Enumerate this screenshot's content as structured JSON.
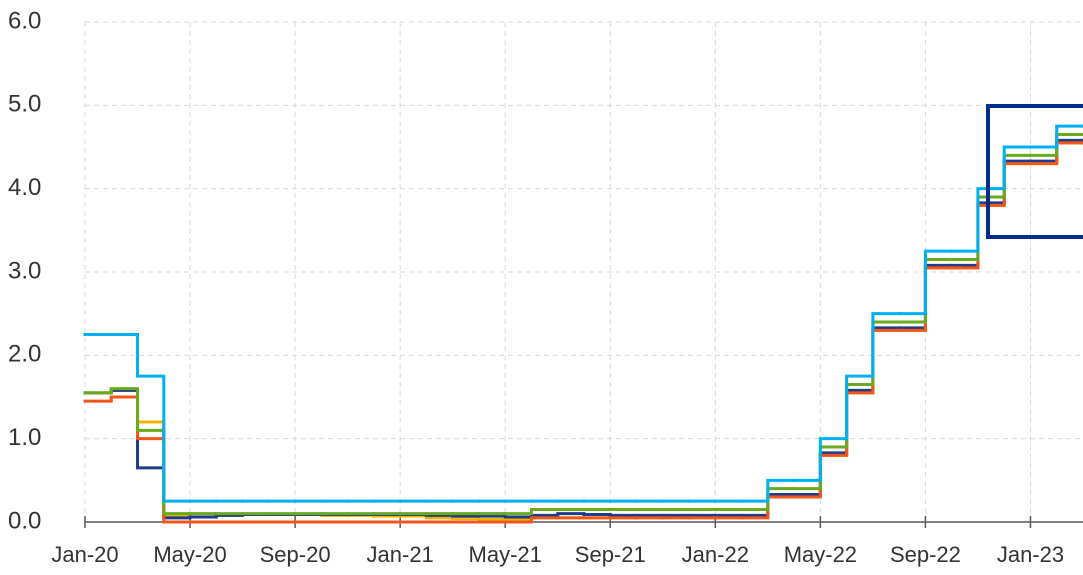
{
  "chart_data": {
    "type": "line",
    "x": [
      "2020-01",
      "2020-02",
      "2020-03",
      "2020-04",
      "2020-05",
      "2020-06",
      "2020-07",
      "2020-08",
      "2020-09",
      "2020-10",
      "2020-11",
      "2020-12",
      "2021-01",
      "2021-02",
      "2021-03",
      "2021-04",
      "2021-05",
      "2021-06",
      "2021-07",
      "2021-08",
      "2021-09",
      "2021-10",
      "2021-11",
      "2021-12",
      "2022-01",
      "2022-02",
      "2022-03",
      "2022-04",
      "2022-05",
      "2022-06",
      "2022-07",
      "2022-08",
      "2022-09",
      "2022-10",
      "2022-11",
      "2022-12",
      "2023-01",
      "2023-02",
      "2023-03"
    ],
    "series": [
      {
        "color": "#f0b400",
        "values": [
          1.55,
          1.58,
          1.2,
          0.08,
          0.06,
          0.08,
          0.09,
          0.09,
          0.09,
          0.08,
          0.08,
          0.07,
          0.07,
          0.05,
          0.04,
          0.03,
          0.03,
          0.05,
          0.05,
          0.05,
          0.05,
          0.05,
          0.05,
          0.05,
          0.05,
          0.05,
          0.3,
          0.3,
          0.8,
          1.55,
          2.3,
          2.3,
          3.05,
          3.05,
          3.8,
          4.3,
          4.3,
          4.55,
          4.55
        ]
      },
      {
        "color": "#1f3c88",
        "values": [
          1.55,
          1.58,
          0.65,
          0.05,
          0.06,
          0.08,
          0.09,
          0.09,
          0.09,
          0.09,
          0.09,
          0.09,
          0.09,
          0.08,
          0.07,
          0.07,
          0.06,
          0.08,
          0.1,
          0.09,
          0.08,
          0.08,
          0.08,
          0.08,
          0.08,
          0.08,
          0.33,
          0.33,
          0.83,
          1.58,
          2.33,
          2.33,
          3.08,
          3.08,
          3.83,
          4.33,
          4.33,
          4.58,
          4.58
        ]
      },
      {
        "color": "#f2561d",
        "values": [
          1.45,
          1.5,
          1.0,
          0.0,
          0.0,
          0.0,
          0.0,
          0.0,
          0.0,
          0.0,
          0.0,
          0.0,
          0.0,
          0.0,
          0.0,
          0.0,
          0.0,
          0.05,
          0.05,
          0.05,
          0.05,
          0.05,
          0.05,
          0.05,
          0.05,
          0.05,
          0.3,
          0.3,
          0.8,
          1.55,
          2.3,
          2.3,
          3.05,
          3.05,
          3.8,
          4.3,
          4.3,
          4.55,
          4.55
        ]
      },
      {
        "color": "#6aaa1e",
        "values": [
          1.55,
          1.6,
          1.1,
          0.1,
          0.1,
          0.1,
          0.1,
          0.1,
          0.1,
          0.1,
          0.1,
          0.1,
          0.1,
          0.1,
          0.1,
          0.1,
          0.1,
          0.15,
          0.15,
          0.15,
          0.15,
          0.15,
          0.15,
          0.15,
          0.15,
          0.15,
          0.4,
          0.4,
          0.9,
          1.65,
          2.4,
          2.4,
          3.15,
          3.15,
          3.9,
          4.4,
          4.4,
          4.65,
          4.65
        ]
      },
      {
        "color": "#00b0f0",
        "values": [
          2.25,
          2.25,
          1.75,
          0.25,
          0.25,
          0.25,
          0.25,
          0.25,
          0.25,
          0.25,
          0.25,
          0.25,
          0.25,
          0.25,
          0.25,
          0.25,
          0.25,
          0.25,
          0.25,
          0.25,
          0.25,
          0.25,
          0.25,
          0.25,
          0.25,
          0.25,
          0.5,
          0.5,
          1.0,
          1.75,
          2.5,
          2.5,
          3.25,
          3.25,
          4.0,
          4.5,
          4.5,
          4.75,
          4.75
        ]
      }
    ],
    "xlim": [
      "2020-01",
      "2023-03"
    ],
    "xticks": [
      {
        "value": "2020-01",
        "label": "Jan-20"
      },
      {
        "value": "2020-05",
        "label": "May-20"
      },
      {
        "value": "2020-09",
        "label": "Sep-20"
      },
      {
        "value": "2021-01",
        "label": "Jan-21"
      },
      {
        "value": "2021-05",
        "label": "May-21"
      },
      {
        "value": "2021-09",
        "label": "Sep-21"
      },
      {
        "value": "2022-01",
        "label": "Jan-22"
      },
      {
        "value": "2022-05",
        "label": "May-22"
      },
      {
        "value": "2022-09",
        "label": "Sep-22"
      },
      {
        "value": "2023-01",
        "label": "Jan-23"
      }
    ],
    "ylim": [
      0,
      6
    ],
    "yticks": [
      {
        "value": 0,
        "label": "0.0"
      },
      {
        "value": 1,
        "label": "1.0"
      },
      {
        "value": 2,
        "label": "2.0"
      },
      {
        "value": 3,
        "label": "3.0"
      },
      {
        "value": 4,
        "label": "4.0"
      },
      {
        "value": 5,
        "label": "5.0"
      },
      {
        "value": 6,
        "label": "6.0"
      }
    ],
    "grid": true
  }
}
